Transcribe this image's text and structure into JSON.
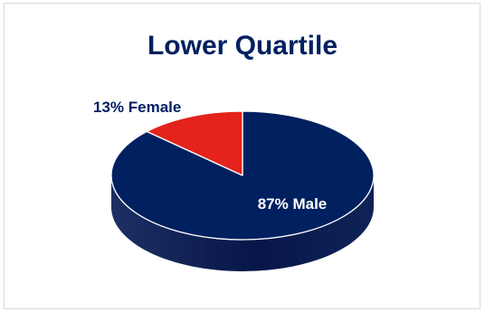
{
  "chart_data": {
    "type": "pie",
    "title": "Lower Quartile",
    "style": "3d",
    "slices": [
      {
        "label": "87% Male",
        "name": "Male",
        "value": 87,
        "color": "#002060"
      },
      {
        "label": "13% Female",
        "name": "Female",
        "value": 13,
        "color": "#e3231c"
      }
    ],
    "colors": {
      "title": "#002060",
      "female_label": "#002060",
      "male_label": "#ffffff",
      "side_dark": "#00123a",
      "edge_highlight": "#ffffff",
      "frame": "#d9d9d9"
    }
  }
}
